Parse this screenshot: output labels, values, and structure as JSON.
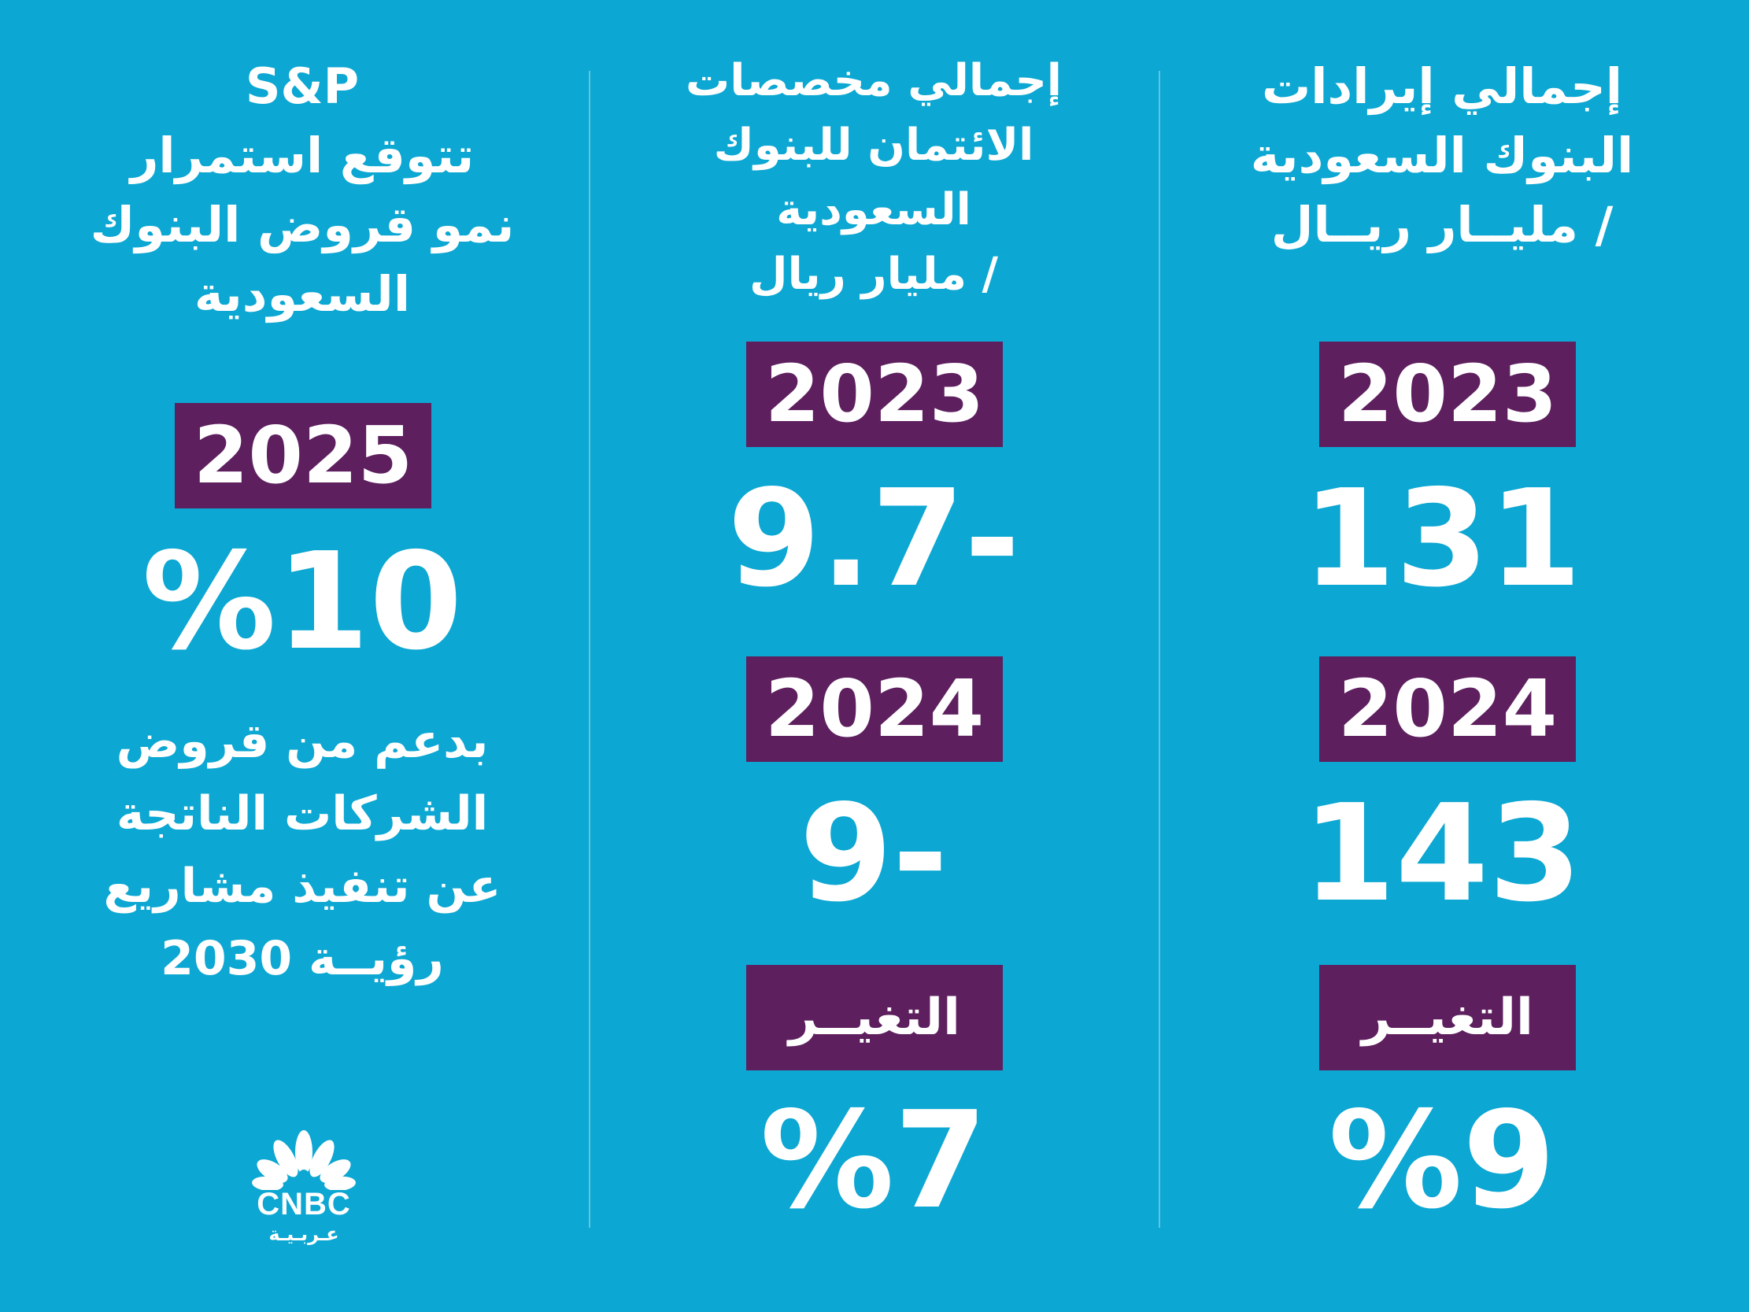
{
  "colors": {
    "background": "#0ca7d2",
    "badge": "#5e1f5f",
    "text": "#ffffff"
  },
  "col_right": {
    "title_lines": [
      "إجمالي إيرادات",
      "البنوك السعودية",
      "/ مليــار ريــال"
    ],
    "year1": "2023",
    "value1": "131",
    "year2": "2024",
    "value2": "143",
    "change_label": "التغيــر",
    "change_value": "%9"
  },
  "col_middle": {
    "title_lines": [
      "إجمالي مخصصات",
      "الائتمان للبنوك",
      "السعودية",
      "/ مليار ريال"
    ],
    "year1": "2023",
    "value1": "9.7-",
    "year2": "2024",
    "value2": "9-",
    "change_label": "التغيــر",
    "change_value": "%7"
  },
  "col_left": {
    "title_lines": [
      "S&P",
      "تتوقع استمرار",
      "نمو قروض البنوك",
      "السعودية"
    ],
    "year": "2025",
    "value": "%10",
    "note_lines": [
      "بدعم من قروض",
      "الشركات الناتجة",
      "عن تنفيذ مشاريع",
      "رؤيــة 2030"
    ]
  },
  "logo": {
    "name": "CNBC",
    "subtitle": "عـربـيـة"
  }
}
